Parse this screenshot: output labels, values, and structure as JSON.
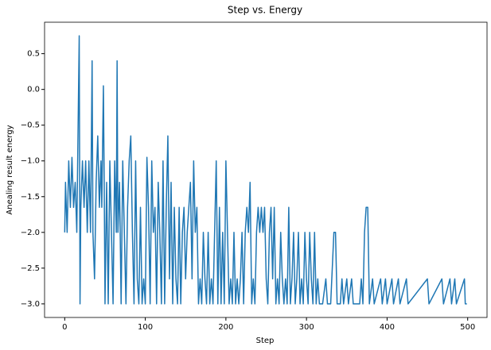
{
  "chart_data": {
    "type": "line",
    "title": "Step vs. Energy",
    "x_label": "Step",
    "y_label": "Anealing result energy",
    "color": "#1f77b4",
    "x": [
      0,
      1,
      3,
      5,
      7,
      9,
      11,
      13,
      15,
      18,
      19,
      20,
      22,
      24,
      26,
      28,
      30,
      32,
      34,
      35,
      37,
      39,
      41,
      43,
      45,
      46,
      48,
      49,
      50,
      52,
      54,
      56,
      58,
      60,
      62,
      64,
      65,
      66,
      68,
      70,
      72,
      74,
      76,
      78,
      80,
      82,
      84,
      86,
      88,
      90,
      92,
      94,
      96,
      98,
      100,
      102,
      104,
      106,
      108,
      110,
      112,
      114,
      116,
      118,
      120,
      122,
      124,
      126,
      128,
      130,
      132,
      134,
      136,
      138,
      140,
      142,
      144,
      146,
      148,
      150,
      152,
      154,
      156,
      158,
      160,
      162,
      164,
      166,
      168,
      170,
      172,
      174,
      176,
      178,
      180,
      182,
      184,
      186,
      188,
      190,
      192,
      194,
      196,
      198,
      200,
      202,
      204,
      206,
      208,
      210,
      212,
      214,
      216,
      218,
      220,
      222,
      224,
      226,
      228,
      230,
      232,
      234,
      236,
      238,
      240,
      242,
      244,
      246,
      248,
      250,
      252,
      254,
      256,
      258,
      260,
      262,
      264,
      266,
      268,
      270,
      272,
      274,
      276,
      278,
      280,
      282,
      284,
      286,
      288,
      290,
      292,
      294,
      296,
      298,
      300,
      302,
      304,
      306,
      308,
      310,
      312,
      314,
      316,
      320,
      324,
      326,
      330,
      334,
      336,
      338,
      342,
      344,
      346,
      350,
      352,
      356,
      358,
      366,
      368,
      370,
      372,
      374,
      376,
      378,
      382,
      384,
      392,
      394,
      398,
      400,
      406,
      408,
      414,
      416,
      424,
      426,
      450,
      452,
      468,
      470,
      478,
      480,
      484,
      486,
      496,
      497,
      499
    ],
    "values": [
      -2,
      -1.3,
      -2,
      -1.0,
      -1.65,
      -0.95,
      -1.65,
      -1.3,
      -2,
      0.75,
      -3,
      -1.65,
      -1.0,
      -1.65,
      -1.0,
      -2,
      -1.0,
      -2,
      0.4,
      -2,
      -2.65,
      -1.3,
      -0.65,
      -1.65,
      -1.0,
      -1.65,
      0.05,
      -1.3,
      -3,
      -1.3,
      -3,
      -1.0,
      -2,
      -3,
      -1.0,
      -2,
      0.4,
      -2,
      -1.3,
      -3,
      -1.0,
      -2,
      -3,
      -1.65,
      -1.0,
      -0.65,
      -2,
      -3,
      -1.0,
      -2.65,
      -3,
      -1.65,
      -3,
      -2.65,
      -3,
      -0.95,
      -1.65,
      -3,
      -1.0,
      -2,
      -1.65,
      -3,
      -1.3,
      -2,
      -3,
      -1.0,
      -3,
      -1.65,
      -0.65,
      -2.65,
      -1.3,
      -3,
      -1.65,
      -2.65,
      -3,
      -1.65,
      -3,
      -2,
      -1.65,
      -2.65,
      -2,
      -1.65,
      -1.3,
      -2.65,
      -1.0,
      -2,
      -1.65,
      -3,
      -2.65,
      -3,
      -2,
      -2.65,
      -3,
      -2,
      -3,
      -2.65,
      -3,
      -2,
      -1.0,
      -3,
      -1.65,
      -3,
      -2,
      -3,
      -1.0,
      -2,
      -3,
      -2.65,
      -3,
      -2,
      -3,
      -2.65,
      -3,
      -2.65,
      -2,
      -3,
      -2,
      -1.65,
      -2,
      -1.3,
      -3,
      -2.65,
      -3,
      -2,
      -1.65,
      -2,
      -1.65,
      -2,
      -1.65,
      -2.65,
      -3,
      -2,
      -1.65,
      -2.65,
      -1.65,
      -3,
      -2.65,
      -3,
      -2,
      -2.65,
      -3,
      -2.65,
      -3,
      -1.65,
      -3,
      -2.65,
      -2,
      -3,
      -2.65,
      -2,
      -3,
      -2.65,
      -3,
      -2,
      -2.65,
      -3,
      -2,
      -2.65,
      -3,
      -2,
      -3,
      -2.65,
      -3,
      -3,
      -2.65,
      -3,
      -3,
      -2,
      -2,
      -3,
      -3,
      -2.65,
      -3,
      -2.65,
      -3,
      -2.65,
      -3,
      -3,
      -2.65,
      -3,
      -2,
      -1.65,
      -1.65,
      -3,
      -2.65,
      -3,
      -2.65,
      -3,
      -2.65,
      -3,
      -2.65,
      -3,
      -2.65,
      -3,
      -2.65,
      -3,
      -2.65,
      -3,
      -2.65,
      -3,
      -2.65,
      -3,
      -2.65,
      -3,
      -2.65,
      -3,
      -3
    ],
    "xlim": [
      -25,
      524
    ],
    "ylim": [
      -3.19,
      0.94
    ],
    "xticks": [
      0,
      100,
      200,
      300,
      400,
      500
    ],
    "yticks": [
      0.5,
      {
        "value": 0,
        "label": "0.0"
      },
      {
        "value": -0.5,
        "label": "−0.5"
      },
      {
        "value": -1.0,
        "label": "−1.0"
      },
      {
        "value": -1.5,
        "label": "−1.5"
      },
      {
        "value": -2.0,
        "label": "−2.0"
      },
      {
        "value": -2.5,
        "label": "−2.5"
      },
      {
        "value": -3.0,
        "label": "−3.0"
      }
    ]
  }
}
